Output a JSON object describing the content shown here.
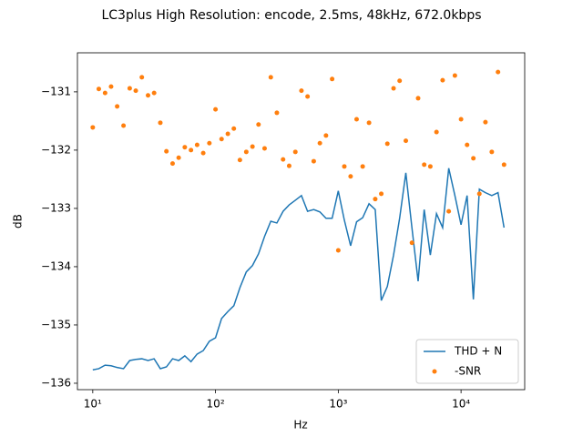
{
  "chart_data": {
    "type": "line",
    "title": "LC3plus High Resolution: encode, 2.5ms, 48kHz, 672.0kbps",
    "xlabel": "Hz",
    "ylabel": "dB",
    "xscale": "log",
    "legend": "lower right",
    "x": [
      10,
      11.2,
      12.6,
      14.1,
      15.8,
      17.8,
      20,
      22.4,
      25.1,
      28.2,
      31.6,
      35.5,
      39.8,
      44.7,
      50.1,
      56.2,
      63.1,
      70.8,
      79.4,
      89.1,
      100,
      112,
      126,
      141,
      158,
      178,
      200,
      224,
      251,
      282,
      316,
      355,
      398,
      447,
      501,
      562,
      631,
      708,
      794,
      891,
      1000,
      1120,
      1260,
      1410,
      1580,
      1780,
      2000,
      2240,
      2510,
      2820,
      3160,
      3550,
      3980,
      4470,
      5010,
      5620,
      6310,
      7080,
      7940,
      8910,
      10000,
      11200,
      12600,
      14100,
      15800,
      17800,
      20000,
      22400
    ],
    "series": [
      {
        "name": "THD + N",
        "type": "line",
        "color": "#1f77b4",
        "values": [
          -135.77,
          -135.75,
          -135.69,
          -135.7,
          -135.73,
          -135.75,
          -135.61,
          -135.59,
          -135.58,
          -135.61,
          -135.58,
          -135.75,
          -135.72,
          -135.58,
          -135.61,
          -135.53,
          -135.63,
          -135.5,
          -135.44,
          -135.28,
          -135.22,
          -134.89,
          -134.77,
          -134.67,
          -134.36,
          -134.09,
          -133.98,
          -133.78,
          -133.48,
          -133.22,
          -133.25,
          -133.05,
          -132.94,
          -132.86,
          -132.78,
          -133.05,
          -133.02,
          -133.06,
          -133.17,
          -133.17,
          -132.7,
          -133.2,
          -133.64,
          -133.23,
          -133.16,
          -132.92,
          -133.02,
          -134.58,
          -134.34,
          -133.8,
          -133.17,
          -132.39,
          -133.33,
          -134.25,
          -133.02,
          -133.8,
          -133.09,
          -133.33,
          -132.31,
          -132.78,
          -133.28,
          -132.78,
          -134.56,
          -132.67,
          -132.73,
          -132.78,
          -132.73,
          -133.33
        ]
      },
      {
        "name": "-SNR",
        "type": "scatter",
        "color": "#ff7f0e",
        "values": [
          -131.61,
          -130.95,
          -131.02,
          -130.91,
          -131.25,
          -131.58,
          -130.94,
          -130.98,
          -130.75,
          -131.06,
          -131.02,
          -131.53,
          -132.02,
          -132.23,
          -132.13,
          -131.95,
          -132.0,
          -131.91,
          -132.05,
          -131.88,
          -131.3,
          -131.81,
          -131.72,
          -131.63,
          -132.17,
          -132.03,
          -131.94,
          -131.56,
          -131.97,
          -130.75,
          -131.36,
          -132.16,
          -132.27,
          -132.03,
          -130.98,
          -131.08,
          -132.19,
          -131.88,
          -131.75,
          -130.78,
          -133.72,
          -132.28,
          -132.45,
          -131.47,
          -132.28,
          -131.53,
          -132.84,
          -132.75,
          -131.89,
          -130.94,
          -130.81,
          -131.84,
          -133.59,
          -131.11,
          -132.25,
          -132.28,
          -131.69,
          -130.8,
          -133.05,
          -130.72,
          -131.47,
          -131.91,
          -132.14,
          -132.75,
          -131.52,
          -132.03,
          -130.66,
          -132.25
        ]
      }
    ],
    "xlim": [
      7.5,
      33000
    ],
    "ylim": [
      -136.11,
      -130.33
    ],
    "xticks": [
      {
        "value": 10,
        "label": "10¹"
      },
      {
        "value": 100,
        "label": "10²"
      },
      {
        "value": 1000,
        "label": "10³"
      },
      {
        "value": 10000,
        "label": "10⁴"
      }
    ],
    "yticks": [
      {
        "value": -136,
        "label": "−136"
      },
      {
        "value": -135,
        "label": "−135"
      },
      {
        "value": -134,
        "label": "−134"
      },
      {
        "value": -133,
        "label": "−133"
      },
      {
        "value": -132,
        "label": "−132"
      },
      {
        "value": -131,
        "label": "−131"
      }
    ]
  }
}
